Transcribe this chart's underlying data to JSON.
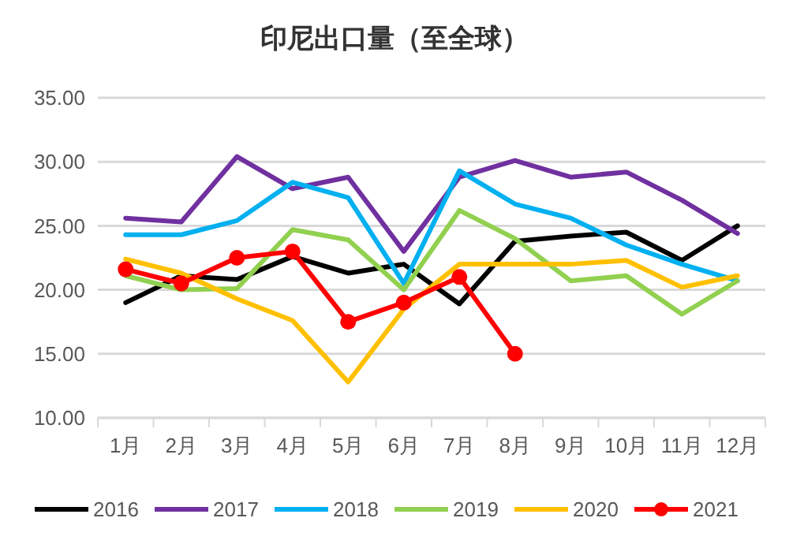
{
  "chart_data": {
    "type": "line",
    "title": "印尼出口量（至全球）",
    "categories": [
      "1月",
      "2月",
      "3月",
      "4月",
      "5月",
      "6月",
      "7月",
      "8月",
      "9月",
      "10月",
      "11月",
      "12月"
    ],
    "series": [
      {
        "name": "2016",
        "color": "#000000",
        "values": [
          19.0,
          21.1,
          20.8,
          22.6,
          21.3,
          22.0,
          18.9,
          23.8,
          24.2,
          24.5,
          22.3,
          25.0
        ]
      },
      {
        "name": "2017",
        "color": "#7030a0",
        "values": [
          25.6,
          25.3,
          30.4,
          27.9,
          28.8,
          23.0,
          28.8,
          30.1,
          28.8,
          29.2,
          27.0,
          24.4
        ]
      },
      {
        "name": "2018",
        "color": "#00b0f0",
        "values": [
          24.3,
          24.3,
          25.4,
          28.4,
          27.2,
          20.5,
          29.3,
          26.7,
          25.6,
          23.5,
          22.0,
          20.7
        ]
      },
      {
        "name": "2019",
        "color": "#92d050",
        "values": [
          21.1,
          20.0,
          20.1,
          24.7,
          23.9,
          20.0,
          26.2,
          24.0,
          20.7,
          21.1,
          18.1,
          20.7
        ]
      },
      {
        "name": "2020",
        "color": "#ffc000",
        "values": [
          22.4,
          21.3,
          19.3,
          17.6,
          12.8,
          18.5,
          22.0,
          22.0,
          22.0,
          22.3,
          20.2,
          21.1
        ]
      },
      {
        "name": "2021",
        "color": "#ff0000",
        "marker": "circle",
        "values": [
          21.6,
          20.5,
          22.5,
          23.0,
          17.5,
          19.0,
          21.0,
          15.0,
          null,
          null,
          null,
          null
        ]
      }
    ],
    "ylim": [
      10,
      35
    ],
    "yticks": [
      {
        "value": 10,
        "label": "10.00"
      },
      {
        "value": 15,
        "label": "15.00"
      },
      {
        "value": 20,
        "label": "20.00"
      },
      {
        "value": 25,
        "label": "25.00"
      },
      {
        "value": 30,
        "label": "30.00"
      },
      {
        "value": 35,
        "label": "35.00"
      }
    ],
    "grid": "y",
    "legend": "bottom",
    "marker": "none",
    "line_style": "solid"
  }
}
